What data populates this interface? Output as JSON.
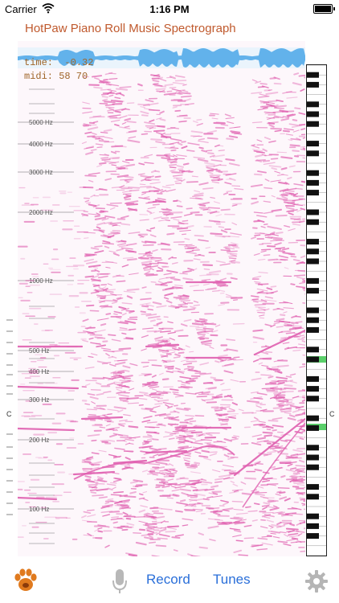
{
  "status_bar": {
    "carrier": "Carrier",
    "time": "1:16 PM"
  },
  "app": {
    "title": "HotPaw Piano Roll Music Spectrograph"
  },
  "readout": {
    "time": "time:  -0.32",
    "midi": "midi: 58 70"
  },
  "frequency_labels": [
    "5000 Hz",
    "4000 Hz",
    "3000 Hz",
    "2000 Hz",
    "1000 Hz",
    "500 Hz",
    "400 Hz",
    "300 Hz",
    "200 Hz",
    "100 Hz"
  ],
  "c_marker": "C",
  "toolbar": {
    "paw_icon": "paw-icon",
    "mic_icon": "microphone-icon",
    "record_label": "Record",
    "tunes_label": "Tunes",
    "settings_icon": "gear-icon"
  },
  "colors": {
    "title": "#c05a2e",
    "spectrogram": "#e060b0",
    "waveform": "#4aa6e8",
    "highlight_key": "#5ad06a",
    "toolbar_button": "#2a6fd9"
  }
}
